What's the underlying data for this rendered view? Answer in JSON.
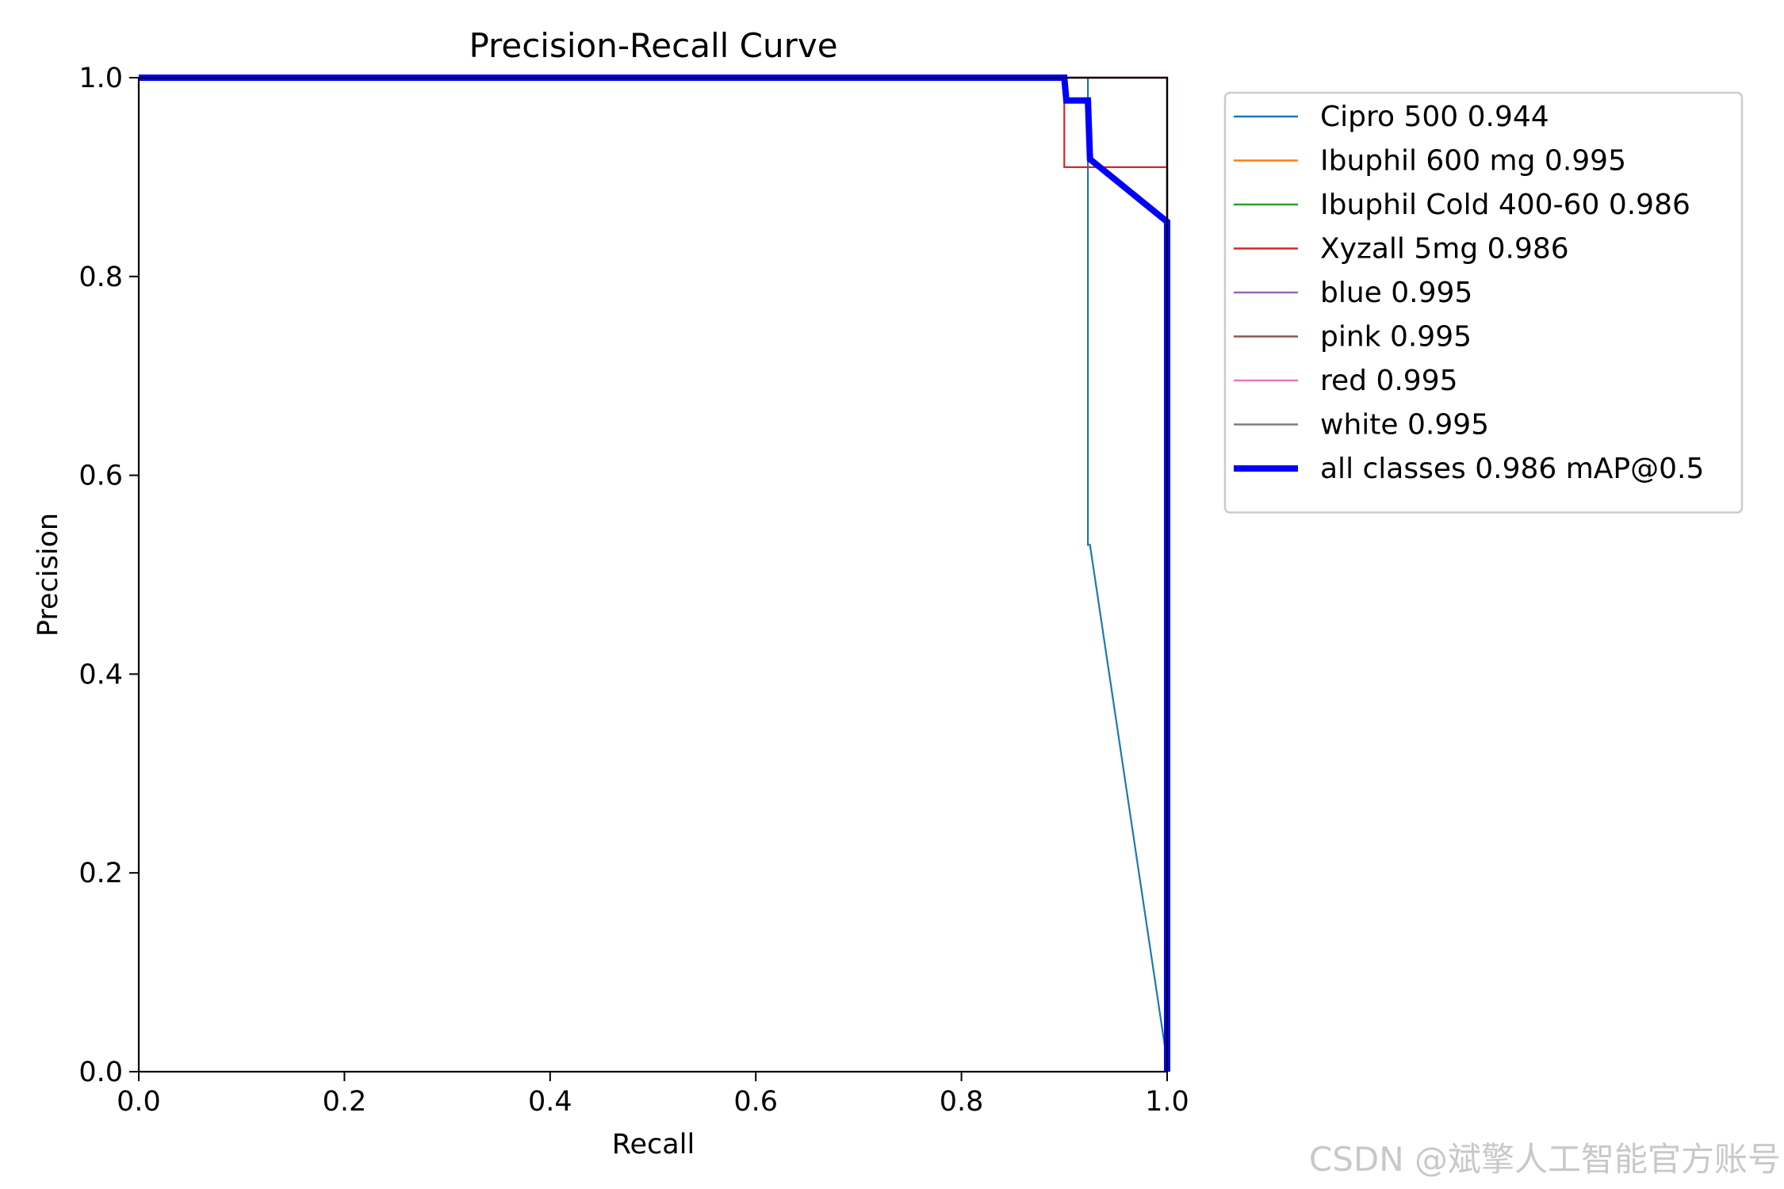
{
  "chart_data": {
    "type": "line",
    "title": "Precision-Recall Curve",
    "xlabel": "Recall",
    "ylabel": "Precision",
    "xlim": [
      0,
      1
    ],
    "ylim": [
      0,
      1
    ],
    "xticks": [
      "0.0",
      "0.2",
      "0.4",
      "0.6",
      "0.8",
      "1.0"
    ],
    "yticks": [
      "0.0",
      "0.2",
      "0.4",
      "0.6",
      "0.8",
      "1.0"
    ],
    "grid": false,
    "legend_position": "outside-right-top",
    "series": [
      {
        "name": "Cipro 500 0.944",
        "color": "#1f77b4",
        "thick": false,
        "x": [
          0,
          0.923,
          0.923,
          0.925,
          1.0,
          1.0
        ],
        "y": [
          1,
          1,
          0.53,
          0.53,
          0.01,
          0
        ]
      },
      {
        "name": "Ibuphil 600 mg 0.995",
        "color": "#ff7f0e",
        "thick": false,
        "x": [
          0,
          1.0,
          1.0
        ],
        "y": [
          1,
          1,
          0
        ]
      },
      {
        "name": "Ibuphil Cold 400-60 0.986",
        "color": "#2ca02c",
        "thick": false,
        "x": [
          0,
          1.0,
          1.0
        ],
        "y": [
          1,
          1,
          0
        ]
      },
      {
        "name": "Xyzall 5mg 0.986",
        "color": "#d62728",
        "thick": false,
        "x": [
          0,
          0.9,
          0.9,
          1.0,
          1.0
        ],
        "y": [
          1,
          1,
          0.91,
          0.91,
          0
        ]
      },
      {
        "name": "blue 0.995",
        "color": "#9467bd",
        "thick": false,
        "x": [
          0,
          1.0,
          1.0
        ],
        "y": [
          1,
          1,
          0
        ]
      },
      {
        "name": "pink 0.995",
        "color": "#8c564b",
        "thick": false,
        "x": [
          0,
          1.0,
          1.0
        ],
        "y": [
          1,
          1,
          0
        ]
      },
      {
        "name": "red 0.995",
        "color": "#e377c2",
        "thick": false,
        "x": [
          0,
          1.0,
          1.0
        ],
        "y": [
          1,
          1,
          0
        ]
      },
      {
        "name": "white 0.995",
        "color": "#7f7f7f",
        "thick": false,
        "x": [
          0,
          1.0,
          1.0
        ],
        "y": [
          1,
          1,
          0
        ]
      },
      {
        "name": "all classes 0.986 mAP@0.5",
        "color": "#0000ff",
        "thick": true,
        "x": [
          0,
          0.9,
          0.902,
          0.923,
          0.925,
          1.0,
          1.0
        ],
        "y": [
          1,
          1,
          0.977,
          0.977,
          0.918,
          0.855,
          0
        ]
      }
    ]
  },
  "watermark": "CSDN @斌擎人工智能官方账号"
}
